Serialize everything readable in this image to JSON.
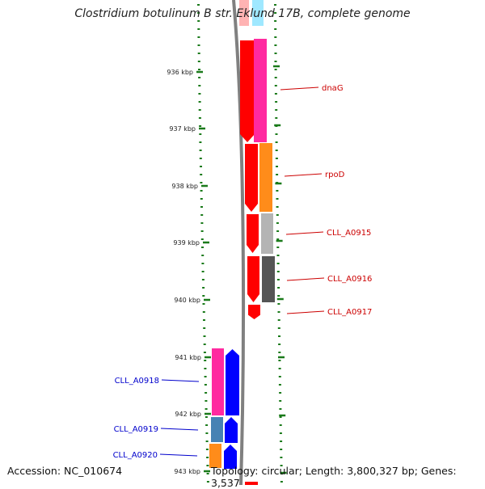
{
  "title": "Clostridium botulinum B str. Eklund 17B, complete genome",
  "footer": {
    "accession": "Accession: NC_010674",
    "topology": "Topology: circular; Length: 3,800,327 bp; Genes: 3,537"
  },
  "ruler": {
    "unit": "kbp",
    "ticks": [
      "936 kbp",
      "937 kbp",
      "938 kbp",
      "939 kbp",
      "940 kbp",
      "941 kbp",
      "942 kbp",
      "943 kbp"
    ]
  },
  "genes": [
    {
      "id": "dnaG",
      "label": "dnaG",
      "strand": "forward",
      "color": "#ff2aa0",
      "label_color": "#cc0000"
    },
    {
      "id": "rpoD",
      "label": "rpoD",
      "strand": "forward",
      "color": "#ff8c1a",
      "label_color": "#cc0000"
    },
    {
      "id": "CLL_A0915",
      "label": "CLL_A0915",
      "strand": "forward",
      "color": "#b4b4b4",
      "label_color": "#cc0000"
    },
    {
      "id": "CLL_A0916",
      "label": "CLL_A0916",
      "strand": "forward",
      "color": "#555555",
      "label_color": "#cc0000"
    },
    {
      "id": "CLL_A0917",
      "label": "CLL_A0917",
      "strand": "forward",
      "color": "#ff0000",
      "label_color": "#cc0000"
    },
    {
      "id": "CLL_A0918",
      "label": "CLL_A0918",
      "strand": "reverse",
      "color": "#ff2aa0",
      "label_color": "#0000cc"
    },
    {
      "id": "CLL_A0919",
      "label": "CLL_A0919",
      "strand": "reverse",
      "color": "#4682b4",
      "label_color": "#0000cc"
    },
    {
      "id": "CLL_A0920",
      "label": "CLL_A0920",
      "strand": "reverse",
      "color": "#ff8c1a",
      "label_color": "#0000cc"
    }
  ],
  "colors": {
    "backbone": "#808080",
    "dotted_track": "#1a7a1a",
    "cds_forward": "#ff0000",
    "cds_reverse": "#0000ff",
    "forward_label": "#cc0000",
    "reverse_label": "#0000cc"
  }
}
